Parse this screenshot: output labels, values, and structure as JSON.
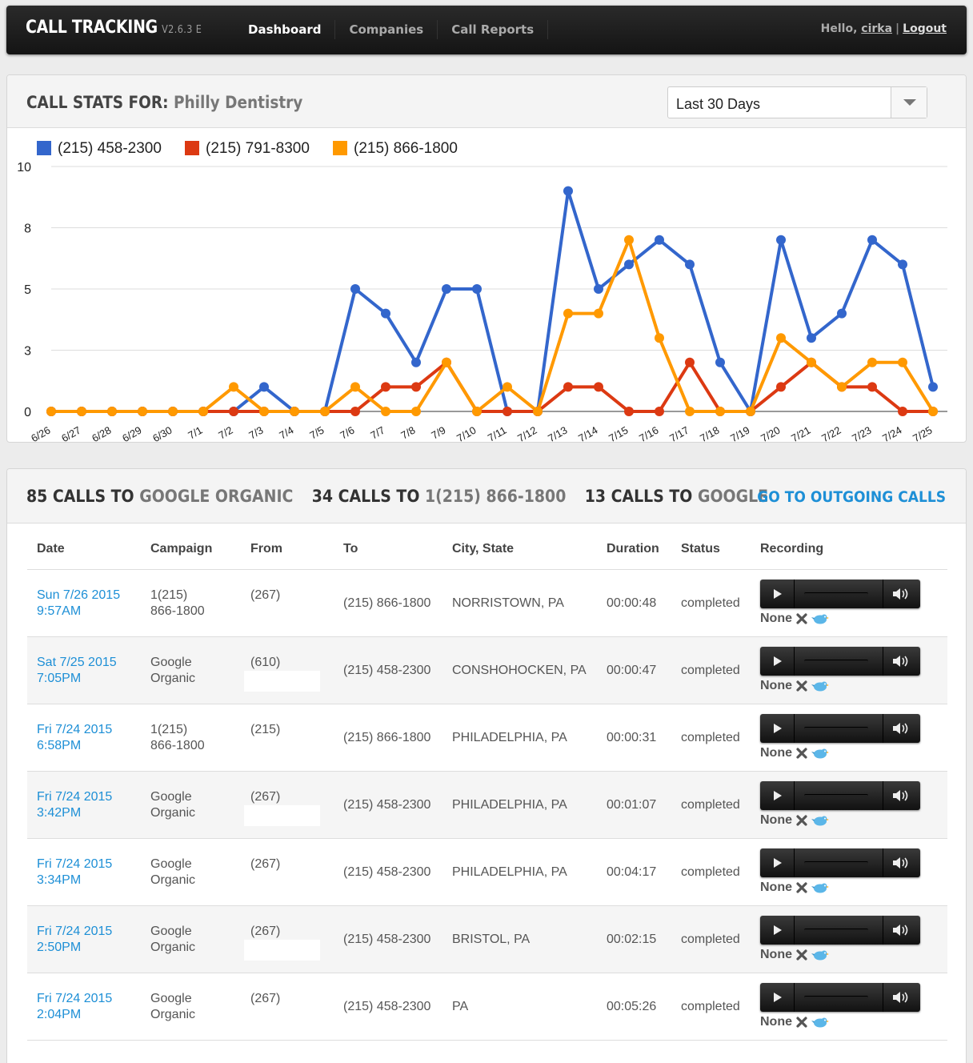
{
  "nav": {
    "brand": "CALL TRACKING",
    "version": "V2.6.3 E",
    "items": [
      {
        "label": "Dashboard",
        "active": true
      },
      {
        "label": "Companies",
        "active": false
      },
      {
        "label": "Call Reports",
        "active": false
      }
    ],
    "greeting": "Hello,",
    "username": "cirka",
    "separator": "|",
    "logout": "Logout"
  },
  "stats": {
    "title_prefix": "CALL STATS FOR:",
    "company": "Philly Dentistry",
    "range": "Last 30 Days"
  },
  "chart_data": {
    "type": "line",
    "categories": [
      "6/26",
      "6/27",
      "6/28",
      "6/29",
      "6/30",
      "7/1",
      "7/2",
      "7/3",
      "7/4",
      "7/5",
      "7/6",
      "7/7",
      "7/8",
      "7/9",
      "7/10",
      "7/11",
      "7/12",
      "7/13",
      "7/14",
      "7/15",
      "7/16",
      "7/17",
      "7/18",
      "7/19",
      "7/20",
      "7/21",
      "7/22",
      "7/23",
      "7/24",
      "7/25"
    ],
    "yticks": [
      "0",
      "3",
      "5",
      "8",
      "10"
    ],
    "ylim": [
      0,
      10
    ],
    "grid": true,
    "legend": "top-left",
    "series": [
      {
        "name": "(215) 458-2300",
        "color": "#3366cc",
        "values": [
          0,
          0,
          0,
          0,
          0,
          0,
          0,
          1,
          0,
          0,
          5,
          4,
          2,
          5,
          5,
          0,
          0,
          9,
          5,
          6,
          7,
          6,
          2,
          0,
          7,
          3,
          4,
          7,
          6,
          1
        ]
      },
      {
        "name": "(215) 791-8300",
        "color": "#dc3912",
        "values": [
          0,
          0,
          0,
          0,
          0,
          0,
          0,
          0,
          0,
          0,
          0,
          1,
          1,
          2,
          0,
          0,
          0,
          1,
          1,
          0,
          0,
          2,
          0,
          0,
          1,
          2,
          1,
          1,
          0,
          0
        ]
      },
      {
        "name": "(215) 866-1800",
        "color": "#ff9900",
        "values": [
          0,
          0,
          0,
          0,
          0,
          0,
          1,
          0,
          0,
          0,
          1,
          0,
          0,
          2,
          0,
          1,
          0,
          4,
          4,
          7,
          3,
          0,
          0,
          0,
          3,
          2,
          1,
          2,
          2,
          0
        ]
      }
    ]
  },
  "summary": {
    "items": [
      {
        "count": "85 CALLS TO",
        "target": "GOOGLE ORGANIC"
      },
      {
        "count": "34 CALLS TO",
        "target": "1(215) 866-1800"
      },
      {
        "count": "13 CALLS TO",
        "target": "GOOGLE"
      }
    ],
    "outgoing_link": "GO TO OUTGOING CALLS"
  },
  "table": {
    "headers": [
      "Date",
      "Campaign",
      "From",
      "To",
      "City, State",
      "Duration",
      "Status",
      "Recording"
    ],
    "rows": [
      {
        "date1": "Sun 7/26 2015",
        "date2": "9:57AM",
        "camp1": "1(215)",
        "camp2": "866-1800",
        "from": "(267)",
        "to": "(215) 866-1800",
        "city": "NORRISTOWN, PA",
        "duration": "00:00:48",
        "status": "completed",
        "rec": "None"
      },
      {
        "date1": "Sat 7/25 2015",
        "date2": "7:05PM",
        "camp1": "Google",
        "camp2": "Organic",
        "from": "(610)",
        "to": "(215) 458-2300",
        "city": "CONSHOHOCKEN, PA",
        "duration": "00:00:47",
        "status": "completed",
        "rec": "None"
      },
      {
        "date1": "Fri 7/24 2015",
        "date2": "6:58PM",
        "camp1": "1(215)",
        "camp2": "866-1800",
        "from": "(215)",
        "to": "(215) 866-1800",
        "city": "PHILADELPHIA, PA",
        "duration": "00:00:31",
        "status": "completed",
        "rec": "None"
      },
      {
        "date1": "Fri 7/24 2015",
        "date2": "3:42PM",
        "camp1": "Google",
        "camp2": "Organic",
        "from": "(267)",
        "to": "(215) 458-2300",
        "city": "PHILADELPHIA, PA",
        "duration": "00:01:07",
        "status": "completed",
        "rec": "None"
      },
      {
        "date1": "Fri 7/24 2015",
        "date2": "3:34PM",
        "camp1": "Google",
        "camp2": "Organic",
        "from": "(267)",
        "to": "(215) 458-2300",
        "city": "PHILADELPHIA, PA",
        "duration": "00:04:17",
        "status": "completed",
        "rec": "None"
      },
      {
        "date1": "Fri 7/24 2015",
        "date2": "2:50PM",
        "camp1": "Google",
        "camp2": "Organic",
        "from": "(267)",
        "to": "(215) 458-2300",
        "city": "BRISTOL, PA",
        "duration": "00:02:15",
        "status": "completed",
        "rec": "None"
      },
      {
        "date1": "Fri 7/24 2015",
        "date2": "2:04PM",
        "camp1": "Google",
        "camp2": "Organic",
        "from": "(267)",
        "to": "(215) 458-2300",
        "city": "PA",
        "duration": "00:05:26",
        "status": "completed",
        "rec": "None"
      }
    ]
  }
}
